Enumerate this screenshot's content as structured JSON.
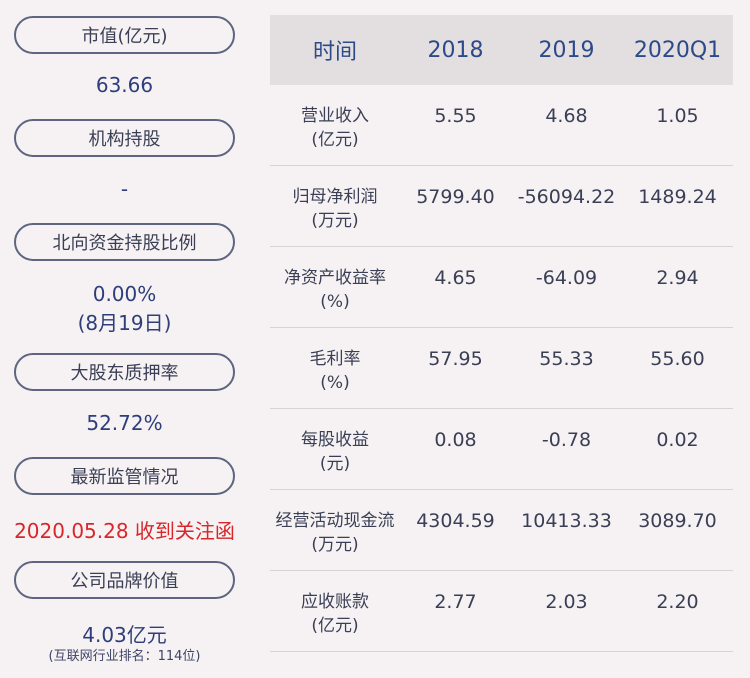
{
  "left": {
    "items": [
      {
        "label": "市值(亿元)",
        "value": "63.66"
      },
      {
        "label": "机构持股",
        "value": "-"
      },
      {
        "label": "北向资金持股比例",
        "value": "0.00%",
        "value2": "(8月19日)"
      },
      {
        "label": "大股东质押率",
        "value": "52.72%"
      },
      {
        "label": "最新监管情况",
        "value": "2020.05.28 收到关注函"
      },
      {
        "label": "公司品牌价值",
        "value": "4.03亿元",
        "value2": "(互联网行业排名：114位)"
      }
    ]
  },
  "table": {
    "headers": [
      "时间",
      "2018",
      "2019",
      "2020Q1"
    ],
    "rows": [
      {
        "label1": "营业收入",
        "label2": "(亿元)",
        "values": [
          "5.55",
          "4.68",
          "1.05"
        ]
      },
      {
        "label1": "归母净利润",
        "label2": "(万元)",
        "values": [
          "5799.40",
          "-56094.22",
          "1489.24"
        ]
      },
      {
        "label1": "净资产收益率",
        "label2": "(%)",
        "values": [
          "4.65",
          "-64.09",
          "2.94"
        ]
      },
      {
        "label1": "毛利率",
        "label2": "(%)",
        "values": [
          "57.95",
          "55.33",
          "55.60"
        ]
      },
      {
        "label1": "每股收益",
        "label2": "(元)",
        "values": [
          "0.08",
          "-0.78",
          "0.02"
        ]
      },
      {
        "label1": "经营活动现金流",
        "label2": "(万元)",
        "values": [
          "4304.59",
          "10413.33",
          "3089.70"
        ]
      },
      {
        "label1": "应收账款",
        "label2": "(亿元)",
        "values": [
          "2.77",
          "2.03",
          "2.20"
        ]
      }
    ]
  }
}
